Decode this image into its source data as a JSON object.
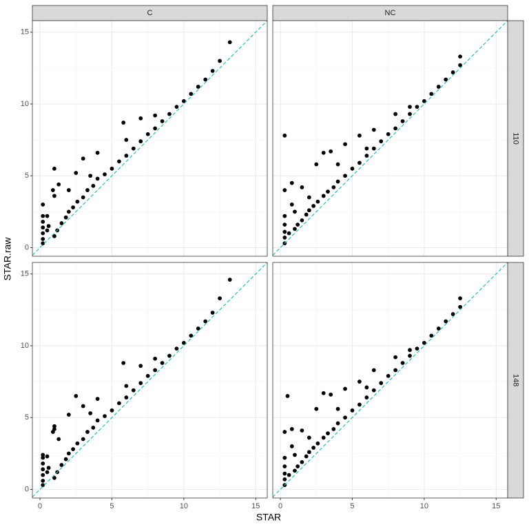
{
  "chart_data": {
    "type": "scatter",
    "xlabel": "STAR",
    "ylabel": "STAR.raw",
    "columns": [
      "C",
      "NC"
    ],
    "rows": [
      "110",
      "148"
    ],
    "xlim": [
      -0.53,
      15.8
    ],
    "ylim": [
      -0.6,
      15.8
    ],
    "xticks": [
      0,
      5,
      10,
      15
    ],
    "yticks": [
      0,
      5,
      10,
      15
    ],
    "grid": true,
    "color": "#000000",
    "reference_line": {
      "slope": 1,
      "intercept": 0,
      "color": "#1fbfc4"
    },
    "panels": [
      {
        "column": 0,
        "row": 0,
        "x": [
          0.2,
          0.2,
          0.2,
          0.2,
          0.2,
          0.2,
          0.2,
          0.5,
          0.6,
          0.9,
          1,
          1,
          1.2,
          1.5,
          1.8,
          2,
          2.3,
          2.6,
          3,
          3.3,
          3.7,
          4,
          4.5,
          5,
          5.5,
          6,
          6.5,
          7,
          7.5,
          8,
          8.5,
          9,
          9.5,
          10,
          10.5,
          11,
          11.5,
          12,
          12.5,
          13.2,
          0.5,
          1,
          1.3,
          2.5,
          3,
          4,
          5.8,
          7,
          2,
          3.5,
          6,
          8
        ],
        "y": [
          0.3,
          0.6,
          1,
          1.4,
          1.8,
          2.2,
          3,
          1.2,
          1.5,
          4,
          0.8,
          5.5,
          1.2,
          1.7,
          2.1,
          2.5,
          2.8,
          3.2,
          3.5,
          4,
          4.3,
          4.8,
          5.1,
          5.5,
          6,
          6.4,
          6.9,
          7.4,
          7.9,
          8.3,
          8.8,
          9.3,
          9.8,
          10.2,
          10.7,
          11.2,
          11.7,
          12.3,
          13,
          14.3,
          2.2,
          3.6,
          4.4,
          5.2,
          6.2,
          6.6,
          8.7,
          9,
          4,
          5,
          7.5,
          9.2
        ]
      },
      {
        "column": 1,
        "row": 0,
        "x": [
          0.3,
          0.3,
          0.3,
          0.3,
          0.3,
          0.3,
          0.6,
          0.8,
          1,
          1.2,
          1.5,
          1.8,
          2,
          2.3,
          2.6,
          3,
          3.3,
          3.7,
          4,
          4.5,
          5,
          5.5,
          6,
          6.5,
          7,
          7.5,
          8,
          8.5,
          9,
          9.5,
          10,
          10.5,
          11,
          11.5,
          12,
          12.5,
          12.5,
          0.3,
          0.8,
          1.5,
          2.5,
          3,
          3.5,
          4.5,
          5.5,
          6.5,
          8,
          1,
          2,
          4,
          6,
          9
        ],
        "y": [
          0.3,
          0.7,
          1.1,
          1.6,
          2.2,
          7.8,
          1,
          4.5,
          1.3,
          1.6,
          1.9,
          2.3,
          2.6,
          2.9,
          3.2,
          3.6,
          3.9,
          4.2,
          4.6,
          5,
          5.5,
          5.9,
          6.4,
          6.9,
          7.4,
          7.9,
          8.3,
          8.8,
          9.3,
          9.8,
          10.2,
          10.7,
          11.2,
          11.7,
          12.2,
          12.7,
          13.3,
          4,
          3,
          4.2,
          5.8,
          6.6,
          6.7,
          7.2,
          7.8,
          8.2,
          9.3,
          2.5,
          3.5,
          5.8,
          6.9,
          9.8
        ]
      },
      {
        "column": 0,
        "row": 1,
        "x": [
          0.2,
          0.2,
          0.2,
          0.2,
          0.2,
          0.2,
          0.2,
          0.5,
          0.6,
          0.9,
          1,
          1,
          1.2,
          1.5,
          1.8,
          2,
          2.3,
          2.6,
          3,
          3.3,
          3.7,
          4,
          4.5,
          5,
          5.5,
          6,
          6.5,
          7,
          7.5,
          8,
          8.5,
          9,
          9.5,
          10,
          10.5,
          11,
          11.5,
          12,
          12.5,
          13.2,
          0.5,
          1,
          1.3,
          2.5,
          3,
          4,
          5.8,
          7,
          2,
          3.5,
          6,
          8
        ],
        "y": [
          0.3,
          0.6,
          1,
          1.4,
          1.8,
          2.2,
          2.4,
          1.2,
          1.5,
          4,
          0.8,
          4.2,
          1.2,
          1.7,
          2.1,
          2.5,
          2.8,
          3.2,
          3.5,
          4,
          4.3,
          4.8,
          5.1,
          5.5,
          6,
          6.4,
          6.9,
          7.4,
          7.9,
          8.3,
          8.8,
          9.3,
          9.8,
          10.2,
          10.7,
          11.2,
          11.7,
          12.3,
          13.3,
          14.6,
          2.3,
          4.4,
          3.5,
          6.5,
          5.8,
          6.3,
          8.8,
          8.6,
          5.2,
          5.3,
          7.2,
          9.1
        ]
      },
      {
        "column": 1,
        "row": 1,
        "x": [
          0.3,
          0.3,
          0.3,
          0.3,
          0.3,
          0.5,
          0.6,
          0.8,
          1,
          1.2,
          1.5,
          1.8,
          2,
          2.3,
          2.6,
          3,
          3.3,
          3.7,
          4,
          4.5,
          5,
          5.5,
          6,
          6.5,
          7,
          7.5,
          8,
          8.5,
          9,
          9.5,
          10,
          10.5,
          11,
          11.5,
          12,
          12.5,
          12.5,
          0.3,
          0.8,
          1.5,
          2.5,
          3,
          3.5,
          4.5,
          5.5,
          6.5,
          8,
          1,
          2,
          4,
          6,
          9
        ],
        "y": [
          0.3,
          0.7,
          1.1,
          1.6,
          2.2,
          6.5,
          1,
          4.2,
          1.3,
          1.6,
          1.9,
          2.3,
          2.6,
          2.9,
          3.2,
          3.6,
          3.9,
          4.2,
          4.6,
          5,
          5.5,
          5.9,
          6.4,
          6.9,
          7.4,
          7.9,
          8.3,
          8.8,
          9.3,
          9.8,
          10.2,
          10.7,
          11.2,
          11.7,
          12.2,
          12.7,
          13.3,
          4,
          3,
          4.1,
          5.6,
          6.7,
          6.6,
          7,
          7.5,
          8.3,
          9.2,
          2.4,
          3.6,
          5.6,
          7.1,
          9.7
        ]
      }
    ]
  }
}
